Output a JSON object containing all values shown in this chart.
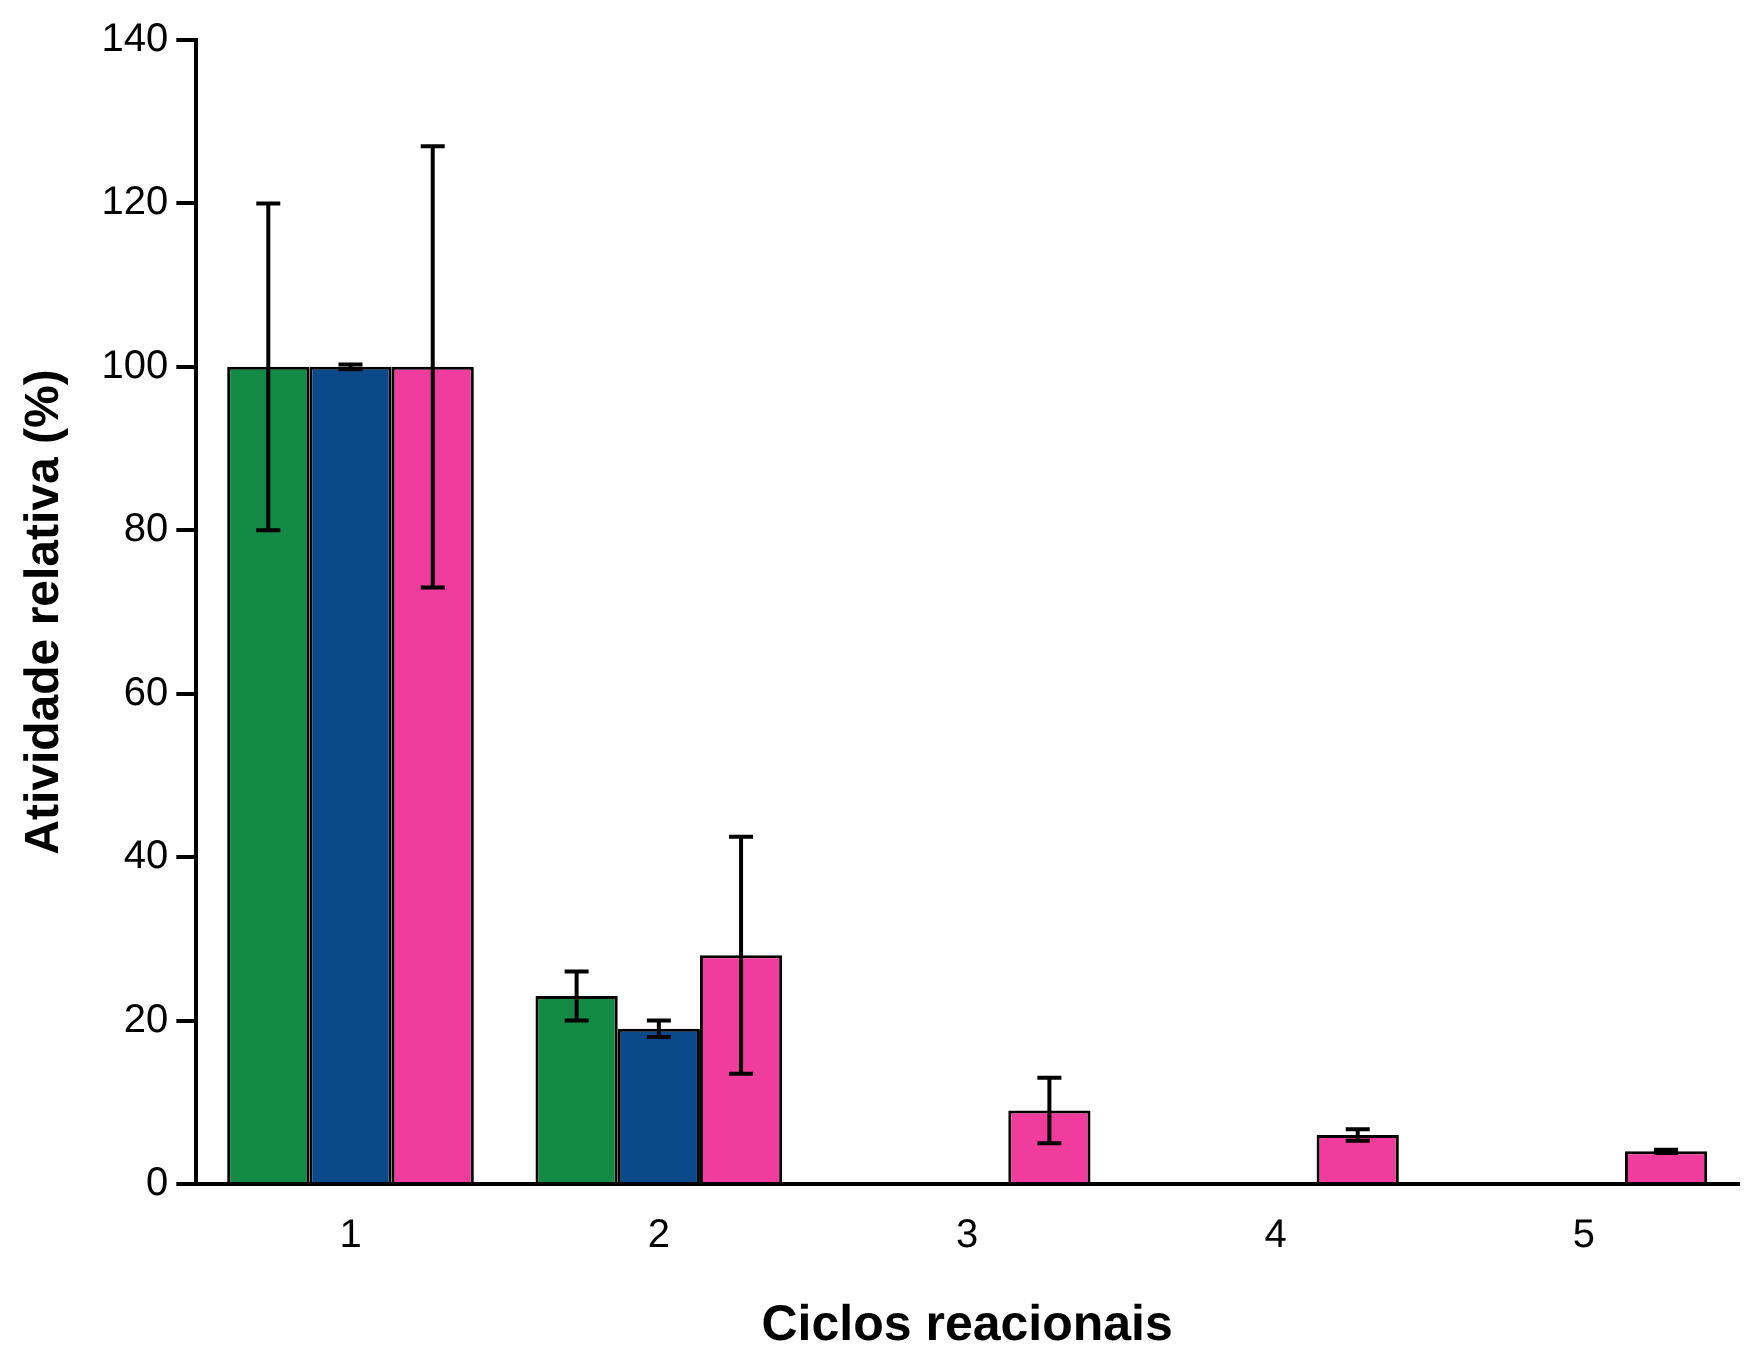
{
  "chart_data": {
    "type": "bar",
    "xlabel": "Ciclos reacionais",
    "ylabel": "Atividade relativa (%)",
    "categories": [
      "1",
      "2",
      "3",
      "4",
      "5"
    ],
    "series": [
      {
        "color": "#138a45",
        "values": [
          100,
          23,
          null,
          null,
          null
        ],
        "errors": [
          20,
          3,
          null,
          null,
          null
        ]
      },
      {
        "color": "#0a4a8a",
        "values": [
          100,
          19,
          null,
          null,
          null
        ],
        "errors": [
          0.3,
          1,
          null,
          null,
          null
        ]
      },
      {
        "color": "#f03c9c",
        "values": [
          100,
          28,
          9,
          6,
          4
        ],
        "errors": [
          27,
          14.5,
          4,
          0.7,
          0.2
        ]
      }
    ],
    "ylim": [
      0,
      140
    ],
    "yticks": [
      0,
      20,
      40,
      60,
      80,
      100,
      120,
      140
    ],
    "grid": false,
    "legend": false
  }
}
